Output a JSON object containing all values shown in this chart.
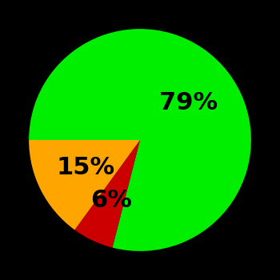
{
  "slices": [
    79,
    6,
    15
  ],
  "colors": [
    "#00ee00",
    "#cc0000",
    "#ffa500"
  ],
  "labels": [
    "79%",
    "6%",
    "15%"
  ],
  "background_color": "#000000",
  "startangle": 180,
  "label_fontsize": 22,
  "label_fontweight": "bold",
  "label_color": "#000000",
  "label_radii": [
    0.55,
    0.6,
    0.55
  ]
}
